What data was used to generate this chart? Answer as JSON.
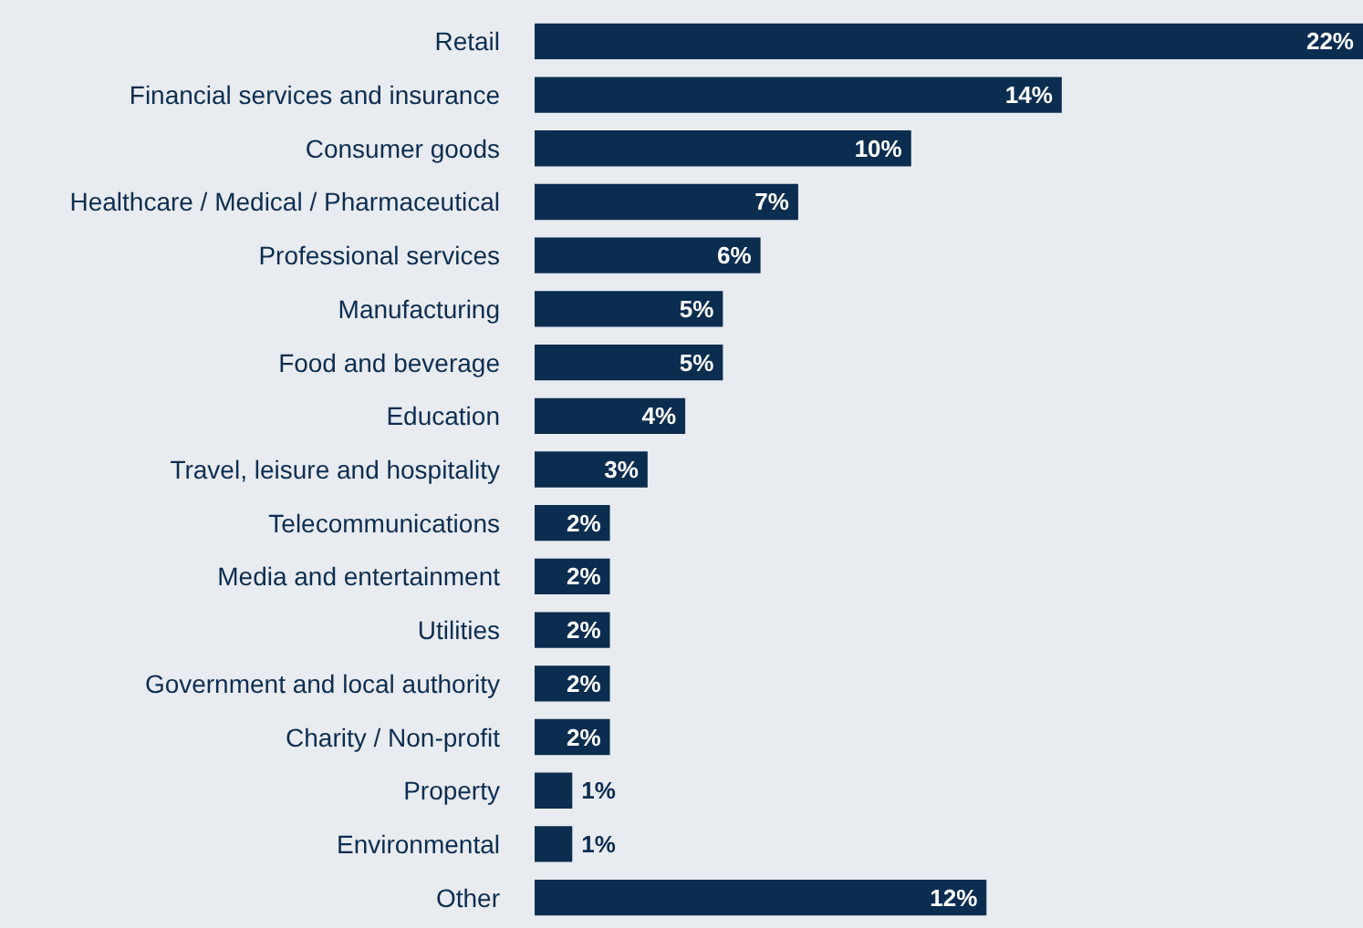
{
  "chart_data": {
    "type": "bar",
    "orientation": "horizontal",
    "categories": [
      "Retail",
      "Financial services and insurance",
      "Consumer goods",
      "Healthcare / Medical / Pharmaceutical",
      "Professional services",
      "Manufacturing",
      "Food and beverage",
      "Education",
      "Travel, leisure and hospitality",
      "Telecommunications",
      "Media and entertainment",
      "Utilities",
      "Government and local authority",
      "Charity / Non-profit",
      "Property",
      "Environmental",
      "Other"
    ],
    "values": [
      22,
      14,
      10,
      7,
      6,
      5,
      5,
      4,
      3,
      2,
      2,
      2,
      2,
      2,
      1,
      1,
      12
    ],
    "value_labels": [
      "22%",
      "14%",
      "10%",
      "7%",
      "6%",
      "5%",
      "5%",
      "4%",
      "3%",
      "2%",
      "2%",
      "2%",
      "2%",
      "2%",
      "1%",
      "1%",
      "12%"
    ],
    "color": "#0b2d50"
  }
}
